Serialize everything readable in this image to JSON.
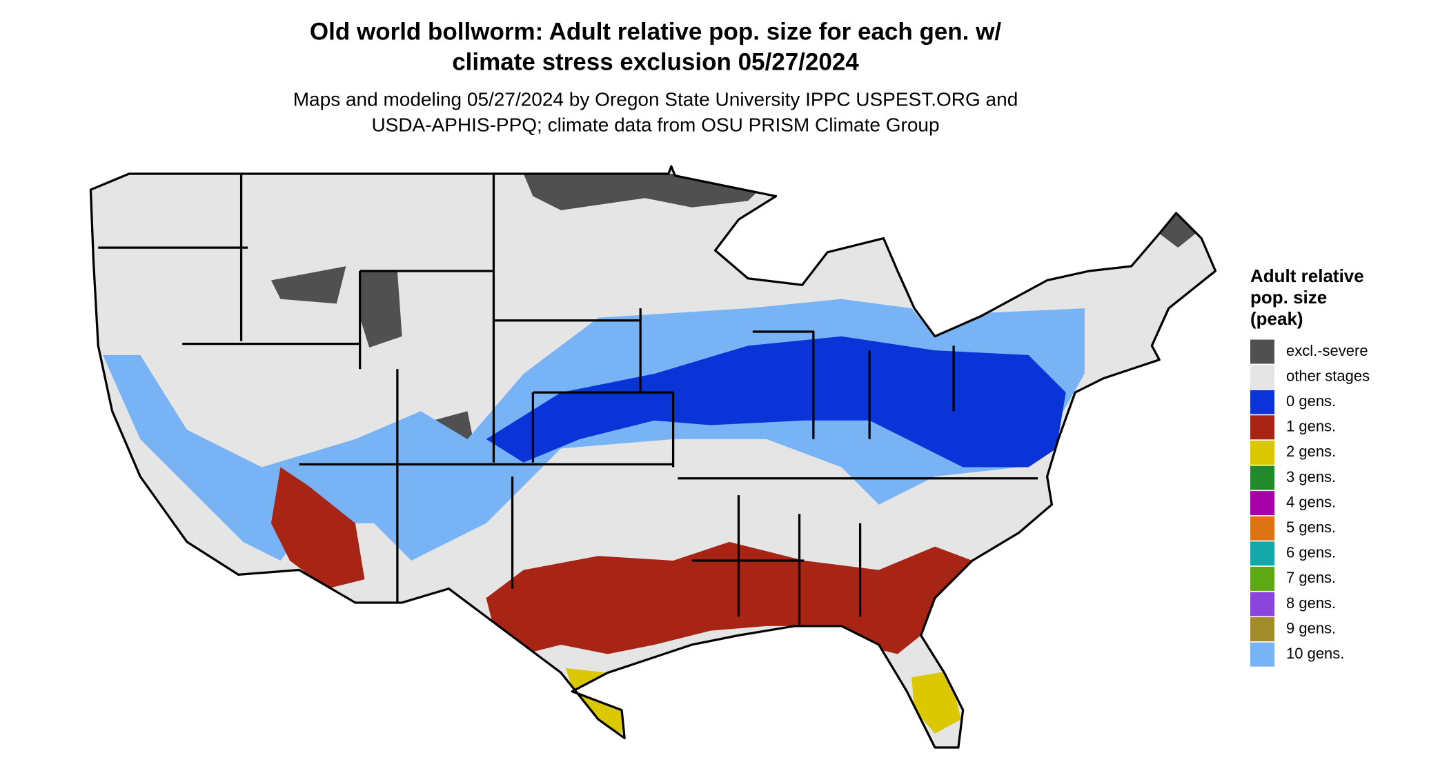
{
  "header": {
    "title_lines": [
      "Old world bollworm: Adult relative pop. size for each gen. w/",
      "climate stress exclusion 05/27/2024"
    ],
    "subtitle_lines": [
      "Maps and modeling 05/27/2024 by Oregon State University IPPC USPEST.ORG and",
      "USDA-APHIS-PPQ; climate data from OSU PRISM Climate Group"
    ]
  },
  "legend": {
    "title_lines": [
      "Adult relative",
      "pop. size",
      "(peak)"
    ],
    "items": [
      {
        "label": "excl.-severe",
        "color": "#505050"
      },
      {
        "label": "other stages",
        "color": "#e5e5e5"
      },
      {
        "label": "0 gens.",
        "color": "#0a33d8"
      },
      {
        "label": "1 gens.",
        "color": "#a82414"
      },
      {
        "label": "2 gens.",
        "color": "#dcc800"
      },
      {
        "label": "3 gens.",
        "color": "#238a2a"
      },
      {
        "label": "4 gens.",
        "color": "#a800a8"
      },
      {
        "label": "5 gens.",
        "color": "#dc7414"
      },
      {
        "label": "6 gens.",
        "color": "#14a8a8"
      },
      {
        "label": "7 gens.",
        "color": "#5ea814"
      },
      {
        "label": "8 gens.",
        "color": "#8a46dc"
      },
      {
        "label": "9 gens.",
        "color": "#a08c28"
      },
      {
        "label": "10 gens.",
        "color": "#78b4f5"
      }
    ]
  }
}
